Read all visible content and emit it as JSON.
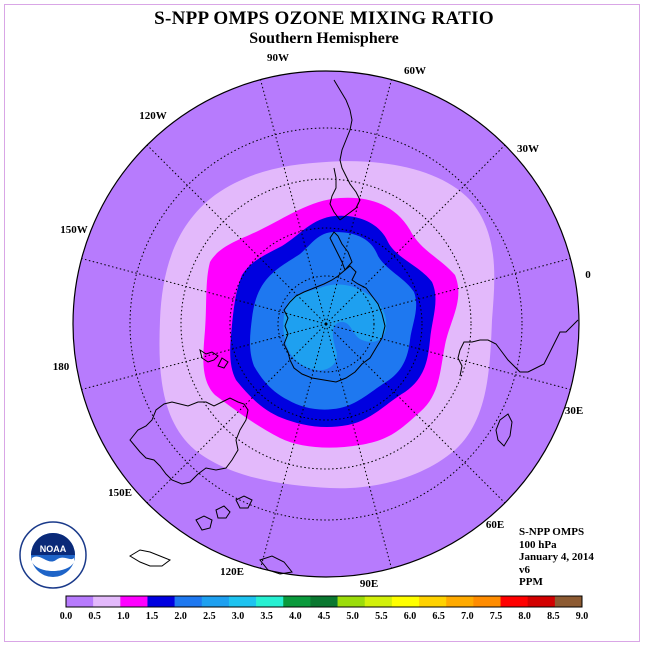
{
  "title": "S-NPP OMPS OZONE MIXING RATIO",
  "subtitle": "Southern Hemisphere",
  "longitude_labels": [
    "90W",
    "60W",
    "30W",
    "0",
    "30E",
    "60E",
    "90E",
    "120E",
    "150E",
    "180",
    "150W",
    "120W"
  ],
  "info": {
    "instrument": "S-NPP OMPS",
    "level": "100 hPa",
    "date": "January 4, 2014",
    "version": "v6",
    "units": "PPM"
  },
  "logo": {
    "text": "NOAA",
    "ring_text": "NATIONAL OCEANIC AND ATMOSPHERIC ADMINISTRATION · U.S. DEPARTMENT OF COMMERCE"
  },
  "colorbar": {
    "ticks": [
      "0.0",
      "0.5",
      "1.0",
      "1.5",
      "2.0",
      "2.5",
      "3.0",
      "3.5",
      "4.0",
      "4.5",
      "5.0",
      "5.5",
      "6.0",
      "6.5",
      "7.0",
      "7.5",
      "8.0",
      "8.5",
      "9.0"
    ],
    "colors": [
      "#b77bfd",
      "#e3b9fb",
      "#ff00ff",
      "#0000e0",
      "#1e78f0",
      "#1ea0f0",
      "#1ec3f0",
      "#27f0d2",
      "#0a9a3c",
      "#0a7830",
      "#9bdc0a",
      "#d2f00a",
      "#ffff00",
      "#ffd200",
      "#ffaa00",
      "#ff8c00",
      "#ff0000",
      "#d20000",
      "#8c5a32"
    ]
  },
  "map_data": {
    "projection": "south-polar-stereographic",
    "field_levels_ppm": {
      "outer": "0.0-0.5",
      "ring1": "0.5-1.0",
      "ring2": "1.0-1.5",
      "ring3": "1.5-2.0",
      "ring4": "2.0-2.5",
      "core": "2.5-3.0"
    }
  }
}
